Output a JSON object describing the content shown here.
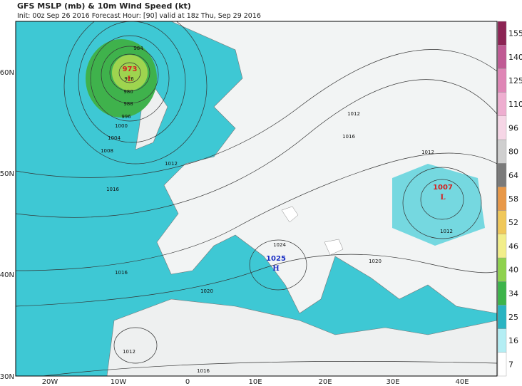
{
  "header": {
    "title": "GFS MSLP (mb) & 10m Wind Speed (kt)",
    "subtitle": "Init: 00z Sep 26 2016   Forecast Hour: [90]   valid at 18z Thu, Sep 29 2016"
  },
  "map": {
    "latitude_labels": [
      "60N",
      "50N",
      "40N",
      "30N"
    ],
    "longitude_labels": [
      "20W",
      "10W",
      "0",
      "10E",
      "20E",
      "30E",
      "40E"
    ],
    "pressure_centers": [
      {
        "value": 973,
        "symbol": "L",
        "color": "#d42020"
      },
      {
        "value": 1007,
        "symbol": "L",
        "color": "#d42020"
      },
      {
        "value": 1025,
        "symbol": "H",
        "color": "#1a2fc4"
      }
    ],
    "isobar_labels": [
      984,
      976,
      980,
      988,
      996,
      1000,
      1004,
      1008,
      1012,
      1016,
      1012,
      1016,
      1012,
      1012,
      1024,
      1020,
      1016,
      1020,
      1012,
      1016
    ]
  },
  "colorbar": {
    "labels": [
      7,
      16,
      25,
      34,
      40,
      46,
      52,
      58,
      64,
      80,
      96,
      110,
      125,
      140,
      155
    ],
    "colors": [
      "#ffffff",
      "#b4eef4",
      "#28b4c2",
      "#3cb44a",
      "#8fd24e",
      "#f2ee8a",
      "#f0c85a",
      "#e89848",
      "#7a7a7a",
      "#cfcfcf",
      "#f6d6e6",
      "#eeaed0",
      "#df86b6",
      "#c05a94",
      "#8c2454"
    ]
  }
}
